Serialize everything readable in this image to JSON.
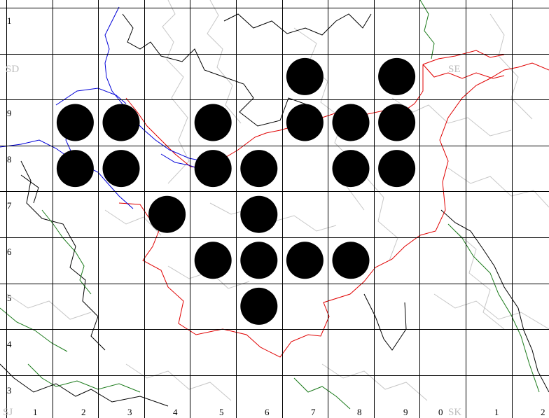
{
  "map": {
    "row_labels": [
      "1",
      "9",
      "8",
      "7",
      "6",
      "5",
      "4",
      "3"
    ],
    "column_labels": [
      "1",
      "2",
      "3",
      "4",
      "5",
      "6",
      "7",
      "8",
      "9",
      "0",
      "1",
      "2"
    ],
    "square_labels": [
      "SD",
      "SE",
      "SJ",
      "SK"
    ],
    "colors": {
      "grid": "#000000",
      "dots": "#000000",
      "boundary": "#e00000",
      "river": "#0000d8",
      "green_line": "#1a7a1a",
      "county": "#c7c7c7",
      "square_label": "#bdbdbd"
    },
    "occupied_tetrads": [
      {
        "col": 7,
        "row": 2
      },
      {
        "col": 9,
        "row": 2
      },
      {
        "col": 2,
        "row": 3
      },
      {
        "col": 3,
        "row": 3
      },
      {
        "col": 5,
        "row": 3
      },
      {
        "col": 7,
        "row": 3
      },
      {
        "col": 8,
        "row": 3
      },
      {
        "col": 9,
        "row": 3
      },
      {
        "col": 2,
        "row": 4
      },
      {
        "col": 3,
        "row": 4
      },
      {
        "col": 5,
        "row": 4
      },
      {
        "col": 6,
        "row": 4
      },
      {
        "col": 8,
        "row": 4
      },
      {
        "col": 9,
        "row": 4
      },
      {
        "col": 4,
        "row": 5
      },
      {
        "col": 6,
        "row": 5
      },
      {
        "col": 5,
        "row": 6
      },
      {
        "col": 6,
        "row": 6
      },
      {
        "col": 7,
        "row": 6
      },
      {
        "col": 8,
        "row": 6
      },
      {
        "col": 6,
        "row": 7
      }
    ]
  }
}
